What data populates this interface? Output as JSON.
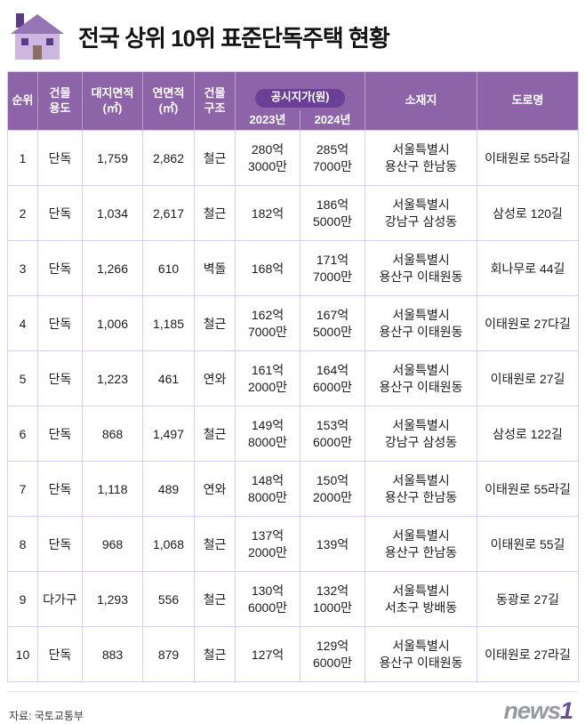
{
  "header": {
    "title": "전국 상위 10위 표준단독주택 현황"
  },
  "table": {
    "headers": {
      "rank": "순위",
      "use": "건물\n용도",
      "land_area": "대지면적\n(㎡)",
      "floor_area": "연면적\n(㎡)",
      "structure": "건물\n구조",
      "price_group": "공시지가(원)",
      "price_2023": "2023년",
      "price_2024": "2024년",
      "location": "소재지",
      "road": "도로명"
    },
    "rows": [
      {
        "rank": "1",
        "use": "단독",
        "land_area": "1,759",
        "floor_area": "2,862",
        "structure": "철근",
        "price_2023": "280억\n3000만",
        "price_2024": "285억\n7000만",
        "location": "서울특별시\n용산구 한남동",
        "road": "이태원로 55라길"
      },
      {
        "rank": "2",
        "use": "단독",
        "land_area": "1,034",
        "floor_area": "2,617",
        "structure": "철근",
        "price_2023": "182억",
        "price_2024": "186억\n5000만",
        "location": "서울특별시\n강남구 삼성동",
        "road": "삼성로 120길"
      },
      {
        "rank": "3",
        "use": "단독",
        "land_area": "1,266",
        "floor_area": "610",
        "structure": "벽돌",
        "price_2023": "168억",
        "price_2024": "171억\n7000만",
        "location": "서울특별시\n용산구 이태원동",
        "road": "회나무로 44길"
      },
      {
        "rank": "4",
        "use": "단독",
        "land_area": "1,006",
        "floor_area": "1,185",
        "structure": "철근",
        "price_2023": "162억\n7000만",
        "price_2024": "167억\n5000만",
        "location": "서울특별시\n용산구 이태원동",
        "road": "이태원로 27다길"
      },
      {
        "rank": "5",
        "use": "단독",
        "land_area": "1,223",
        "floor_area": "461",
        "structure": "연와",
        "price_2023": "161억\n2000만",
        "price_2024": "164억\n6000만",
        "location": "서울특별시\n용산구 이태원동",
        "road": "이태원로 27길"
      },
      {
        "rank": "6",
        "use": "단독",
        "land_area": "868",
        "floor_area": "1,497",
        "structure": "철근",
        "price_2023": "149억\n8000만",
        "price_2024": "153억\n6000만",
        "location": "서울특별시\n강남구 삼성동",
        "road": "삼성로 122길"
      },
      {
        "rank": "7",
        "use": "단독",
        "land_area": "1,118",
        "floor_area": "489",
        "structure": "연와",
        "price_2023": "148억\n8000만",
        "price_2024": "150억\n2000만",
        "location": "서울특별시\n용산구 한남동",
        "road": "이태원로 55라길"
      },
      {
        "rank": "8",
        "use": "단독",
        "land_area": "968",
        "floor_area": "1,068",
        "structure": "철근",
        "price_2023": "137억\n2000만",
        "price_2024": "139억",
        "location": "서울특별시\n용산구 한남동",
        "road": "이태원로 55길"
      },
      {
        "rank": "9",
        "use": "다가구",
        "land_area": "1,293",
        "floor_area": "556",
        "structure": "철근",
        "price_2023": "130억\n6000만",
        "price_2024": "132억\n1000만",
        "location": "서울특별시\n서초구 방배동",
        "road": "동광로 27길"
      },
      {
        "rank": "10",
        "use": "단독",
        "land_area": "883",
        "floor_area": "879",
        "structure": "철근",
        "price_2023": "127억",
        "price_2024": "129억\n6000만",
        "location": "서울특별시\n용산구 이태원동",
        "road": "이태원로 27라길"
      }
    ]
  },
  "footer": {
    "source": "자료: 국토교통부",
    "logo_news": "news",
    "logo_one": "1"
  },
  "colors": {
    "header_purple": "#8e64a9",
    "pill_purple": "#6b3f95",
    "rank_column_lavender": "#eadef4",
    "price_column_lavender": "#f4ecfa",
    "grid_line": "#ddccee",
    "logo_gray": "#97999e",
    "logo_purple": "#6b4d9e"
  },
  "chart_data": {
    "type": "table",
    "title": "전국 상위 10위 표준단독주택 현황",
    "columns": [
      "순위",
      "건물용도",
      "대지면적(㎡)",
      "연면적(㎡)",
      "건물구조",
      "공시지가(원) 2023년",
      "공시지가(원) 2024년",
      "소재지",
      "도로명"
    ],
    "rows": [
      [
        "1",
        "단독",
        "1,759",
        "2,862",
        "철근",
        "280억3000만",
        "285억7000만",
        "서울특별시 용산구 한남동",
        "이태원로 55라길"
      ],
      [
        "2",
        "단독",
        "1,034",
        "2,617",
        "철근",
        "182억",
        "186억5000만",
        "서울특별시 강남구 삼성동",
        "삼성로 120길"
      ],
      [
        "3",
        "단독",
        "1,266",
        "610",
        "벽돌",
        "168억",
        "171억7000만",
        "서울특별시 용산구 이태원동",
        "회나무로 44길"
      ],
      [
        "4",
        "단독",
        "1,006",
        "1,185",
        "철근",
        "162억7000만",
        "167억5000만",
        "서울특별시 용산구 이태원동",
        "이태원로 27다길"
      ],
      [
        "5",
        "단독",
        "1,223",
        "461",
        "연와",
        "161억2000만",
        "164억6000만",
        "서울특별시 용산구 이태원동",
        "이태원로 27길"
      ],
      [
        "6",
        "단독",
        "868",
        "1,497",
        "철근",
        "149억8000만",
        "153억6000만",
        "서울특별시 강남구 삼성동",
        "삼성로 122길"
      ],
      [
        "7",
        "단독",
        "1,118",
        "489",
        "연와",
        "148억8000만",
        "150억2000만",
        "서울특별시 용산구 한남동",
        "이태원로 55라길"
      ],
      [
        "8",
        "단독",
        "968",
        "1,068",
        "철근",
        "137억2000만",
        "139억",
        "서울특별시 용산구 한남동",
        "이태원로 55길"
      ],
      [
        "9",
        "다가구",
        "1,293",
        "556",
        "철근",
        "130억6000만",
        "132억1000만",
        "서울특별시 서초구 방배동",
        "동광로 27길"
      ],
      [
        "10",
        "단독",
        "883",
        "879",
        "철근",
        "127억",
        "129억6000만",
        "서울특별시 용산구 이태원동",
        "이태원로 27라길"
      ]
    ],
    "source": "국토교통부"
  }
}
